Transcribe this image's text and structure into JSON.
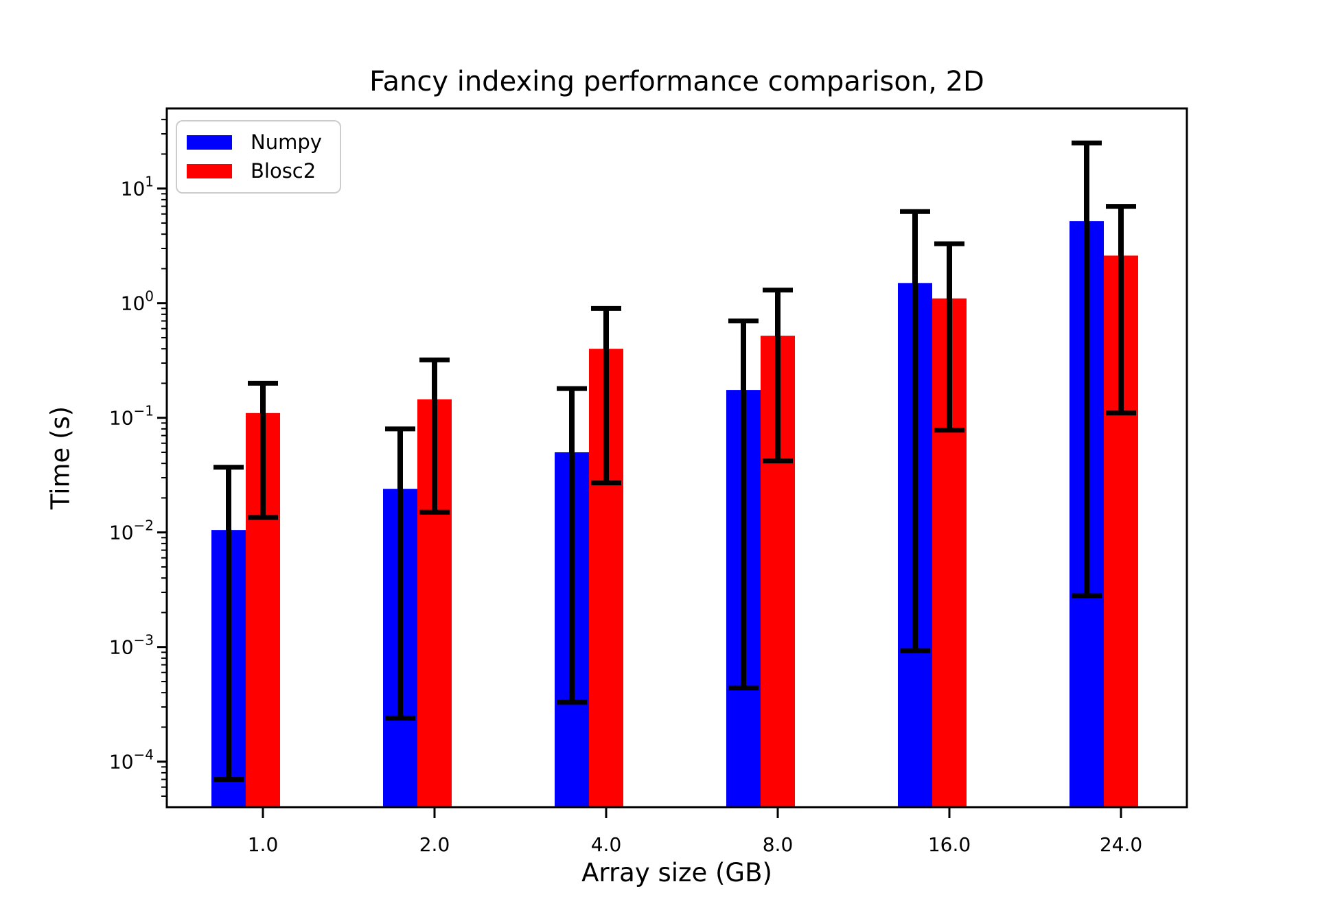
{
  "figure": {
    "background": "#ffffff"
  },
  "chart_data": {
    "type": "bar",
    "title": "Fancy indexing performance comparison, 2D",
    "xlabel": "Array size (GB)",
    "ylabel": "Time (s)",
    "yscale": "log",
    "ylim": [
      4e-05,
      50
    ],
    "grid": false,
    "legend_position": "upper left",
    "categories": [
      "1.0",
      "2.0",
      "4.0",
      "8.0",
      "16.0",
      "24.0"
    ],
    "y_tick_exponents": [
      1,
      0,
      -1,
      -2,
      -3,
      -4
    ],
    "error_bar_color": "#000000",
    "axis_color": "#000000",
    "series": [
      {
        "name": "Numpy",
        "color": "#0000ff",
        "values": [
          0.0105,
          0.024,
          0.05,
          0.175,
          1.5,
          5.2
        ],
        "err_low": [
          7e-05,
          0.00024,
          0.00033,
          0.00044,
          0.00093,
          0.0028
        ],
        "err_high": [
          0.037,
          0.08,
          0.18,
          0.7,
          6.3,
          25
        ]
      },
      {
        "name": "Blosc2",
        "color": "#ff0000",
        "values": [
          0.11,
          0.145,
          0.4,
          0.52,
          1.1,
          2.6
        ],
        "err_low": [
          0.0135,
          0.015,
          0.027,
          0.042,
          0.078,
          0.11
        ],
        "err_high": [
          0.2,
          0.32,
          0.9,
          1.3,
          3.3,
          7.0
        ]
      }
    ]
  }
}
